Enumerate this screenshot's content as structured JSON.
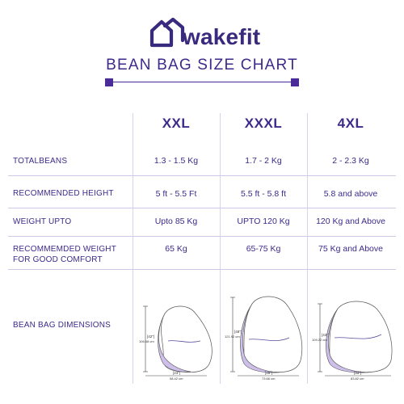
{
  "brand": {
    "name": "wakefit"
  },
  "title": "BEAN BAG SIZE CHART",
  "columns": [
    "XXL",
    "XXXL",
    "4XL"
  ],
  "rows": [
    {
      "label": "TOTALBEANS",
      "values": [
        "1.3 - 1.5 Kg",
        "1.7 - 2 Kg",
        "2 - 2.3 Kg"
      ]
    },
    {
      "label": "RECOMMENDED HEIGHT",
      "values": [
        "5 ft - 5.5 Ft",
        "5.5 ft - 5.8 ft",
        "5.8 and above"
      ]
    },
    {
      "label": "WEIGHT UPTO",
      "values": [
        "Upto 85 Kg",
        "UPTO 120 Kg",
        "120 Kg and Above"
      ]
    },
    {
      "label": "RECOMMEMDED WEIGHT FOR GOOD COMFORT",
      "values": [
        "65 Kg",
        "65-75 Kg",
        "75 Kg and Above"
      ]
    }
  ],
  "dimensions": {
    "label": "BEAN BAG DIMENSIONS",
    "bags": [
      {
        "height_in": "[42\"]",
        "height_cm": "106.68 cm",
        "width_in": "[23\"]",
        "width_cm": "58.42 cm"
      },
      {
        "height_in": "[48\"]",
        "height_cm": "121.92 cm",
        "width_in": "[29\"]",
        "width_cm": "73.66 cm"
      },
      {
        "height_in": "[43\"]",
        "height_cm": "109.22 cm",
        "width_in": "[33\"]",
        "width_cm": "83.82 cm"
      }
    ]
  },
  "colors": {
    "primary": "#3d2a8a",
    "accent": "#4b2a9a",
    "bag_fill": "#cdbfea"
  }
}
